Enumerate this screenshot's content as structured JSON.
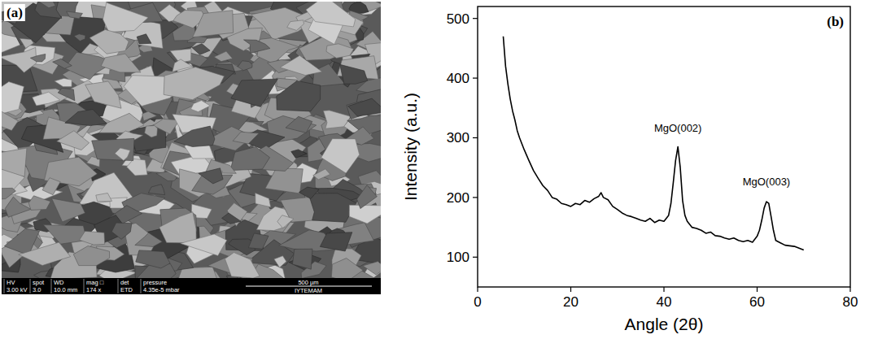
{
  "image_panel": {
    "label": "(a)",
    "info_bar": {
      "headers": [
        "HV",
        "spot",
        "WD",
        "mag □",
        "det",
        "pressure"
      ],
      "values": [
        "3.00 kV",
        "3.0",
        "10.0 mm",
        "174 x",
        "ETD",
        "4.35e-5 mbar"
      ],
      "scale_bar": "500 µm",
      "lab": "IYTEMAM"
    }
  },
  "chart_data": {
    "type": "line",
    "title": "(b)",
    "x_label": "Angle (2θ)",
    "y_label": "Intensity (a.u.)",
    "x": [
      5.5,
      6,
      6.5,
      7,
      7.5,
      8,
      8.5,
      9,
      10,
      11,
      12,
      13,
      14,
      15,
      16,
      17,
      18,
      19,
      20,
      21,
      22,
      23,
      24,
      25,
      26,
      26.5,
      27,
      28,
      29,
      30,
      31,
      32,
      33,
      34,
      35,
      36,
      37,
      38,
      39,
      40,
      41,
      41.5,
      42,
      42.5,
      43,
      43.5,
      44,
      44.5,
      45,
      46,
      47,
      48,
      49,
      50,
      51,
      52,
      53,
      54,
      55,
      56,
      57,
      58,
      59,
      60,
      60.5,
      61,
      61.5,
      62,
      62.5,
      63,
      63.5,
      64,
      65,
      66,
      67,
      68,
      69,
      70
    ],
    "values": [
      470,
      420,
      390,
      365,
      345,
      330,
      312,
      300,
      280,
      262,
      245,
      232,
      220,
      212,
      200,
      197,
      190,
      188,
      185,
      190,
      188,
      195,
      192,
      198,
      202,
      208,
      200,
      196,
      185,
      180,
      174,
      170,
      168,
      165,
      162,
      160,
      165,
      158,
      162,
      160,
      170,
      190,
      225,
      262,
      285,
      250,
      195,
      170,
      160,
      150,
      148,
      145,
      140,
      142,
      136,
      135,
      132,
      130,
      132,
      128,
      126,
      128,
      125,
      135,
      145,
      162,
      182,
      193,
      190,
      168,
      145,
      128,
      124,
      120,
      119,
      118,
      115,
      112
    ],
    "color": "#000000",
    "xlim": [
      0,
      80
    ],
    "xticks": [
      0,
      20,
      40,
      60,
      80
    ],
    "ylim": [
      50,
      520
    ],
    "yticks": [
      100,
      200,
      300,
      400,
      500
    ],
    "annotations": [
      {
        "text": "MgO(002)",
        "x": 43,
        "y": 310
      },
      {
        "text": "MgO(003)",
        "x": 62,
        "y": 220
      }
    ]
  }
}
